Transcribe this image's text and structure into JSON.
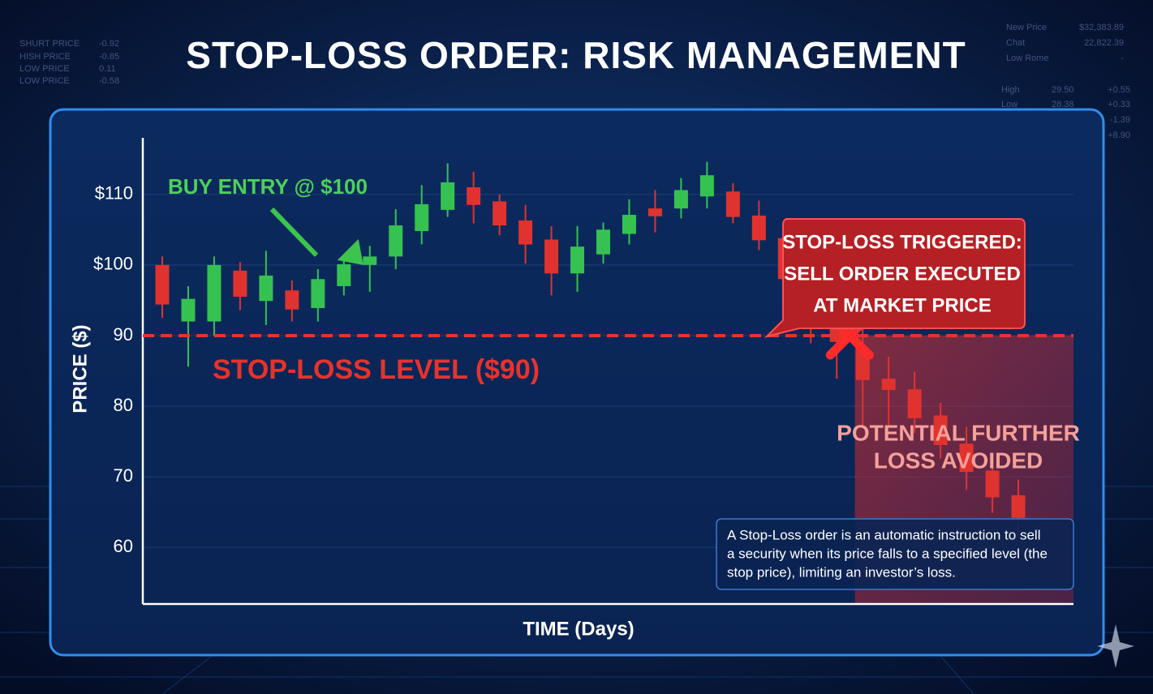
{
  "chart_data": {
    "type": "candlestick",
    "title": "STOP-LOSS ORDER: RISK MANAGEMENT",
    "xlabel": "TIME (Days)",
    "ylabel": "PRICE ($)",
    "ylim": [
      52,
      118
    ],
    "yticks": [
      {
        "value": 110,
        "label": "$110"
      },
      {
        "value": 100,
        "label": "$100"
      },
      90,
      80,
      70,
      60
    ],
    "grid": true,
    "up_color": "#35c251",
    "down_color": "#e0332f",
    "open": [
      100,
      92,
      92,
      99.2,
      94.9,
      96.4,
      93.9,
      97,
      100,
      101.2,
      104.8,
      107.8,
      111,
      109,
      106.3,
      103.6,
      98.8,
      101.5,
      104.4,
      108,
      108,
      109.7,
      110.4,
      107,
      103.8,
      98.5,
      94.6,
      88.1,
      83.9,
      82.4,
      78.7,
      74.7,
      70.9,
      67.4
    ],
    "high": [
      101.2,
      97,
      101.2,
      100.4,
      102,
      97.8,
      99.4,
      101.2,
      102.7,
      107.9,
      111.3,
      114.4,
      113.2,
      110,
      108.5,
      105.5,
      105.5,
      106,
      109.3,
      110.6,
      112.3,
      114.6,
      111.6,
      109.1,
      105.5,
      101.2,
      95.2,
      91,
      87,
      84.9,
      80.5,
      77.1,
      72.6,
      69.6
    ],
    "low": [
      92.5,
      85.6,
      90,
      93.6,
      91.5,
      92,
      92,
      95.7,
      96.2,
      99.4,
      102.9,
      106.8,
      105.9,
      104.2,
      100.2,
      95.7,
      96.2,
      100.2,
      102.9,
      104.6,
      106.6,
      108,
      105.9,
      102.1,
      94.6,
      88.9,
      83.9,
      76.9,
      77.3,
      76.2,
      72.6,
      68.2,
      64.9,
      61.6
    ],
    "close": [
      94.4,
      95.2,
      100,
      95.5,
      98.5,
      93.7,
      98,
      100.1,
      101.2,
      105.6,
      108.6,
      111.7,
      108.5,
      105.6,
      102.9,
      98.8,
      102.6,
      105,
      107.1,
      106.9,
      110.6,
      112.7,
      106.8,
      103.5,
      98,
      94.7,
      89.1,
      83.7,
      82.3,
      78.3,
      74.5,
      70.7,
      67.1,
      64.2
    ],
    "buy_entry": {
      "value": 100,
      "label": "BUY ENTRY @ $100"
    },
    "stop_loss": {
      "value": 90,
      "label": "STOP-LOSS LEVEL ($90)",
      "color": "#e8322c"
    },
    "callout": [
      "STOP-LOSS TRIGGERED:",
      "SELL ORDER EXECUTED",
      "AT MARKET PRICE"
    ],
    "avoided": [
      "POTENTIAL FURTHER",
      "LOSS AVOIDED"
    ],
    "note": [
      "A Stop-Loss order is an automatic instruction to sell",
      "a security when its price falls to a specified level (the",
      "stop price), limiting an investor’s loss."
    ]
  },
  "background_tickers": {
    "left": [
      [
        "SHURT PRICE",
        "-0.92"
      ],
      [
        "HISH PRICE",
        "-0.85"
      ],
      [
        "LOW PRICE",
        "0.11"
      ],
      [
        "LOW PRICE",
        "-0.58"
      ]
    ],
    "right": [
      [
        "New Price",
        "$32,383.89"
      ],
      [
        "Chat",
        "22,822.39"
      ],
      [
        "Low Rome",
        "-"
      ]
    ],
    "right2": [
      [
        "High",
        "29.50",
        "+0.55"
      ],
      [
        "Low",
        "28.38",
        "+0.33"
      ],
      [
        "",
        "",
        "-1.39"
      ],
      [
        "",
        "",
        "+8.90"
      ]
    ]
  }
}
